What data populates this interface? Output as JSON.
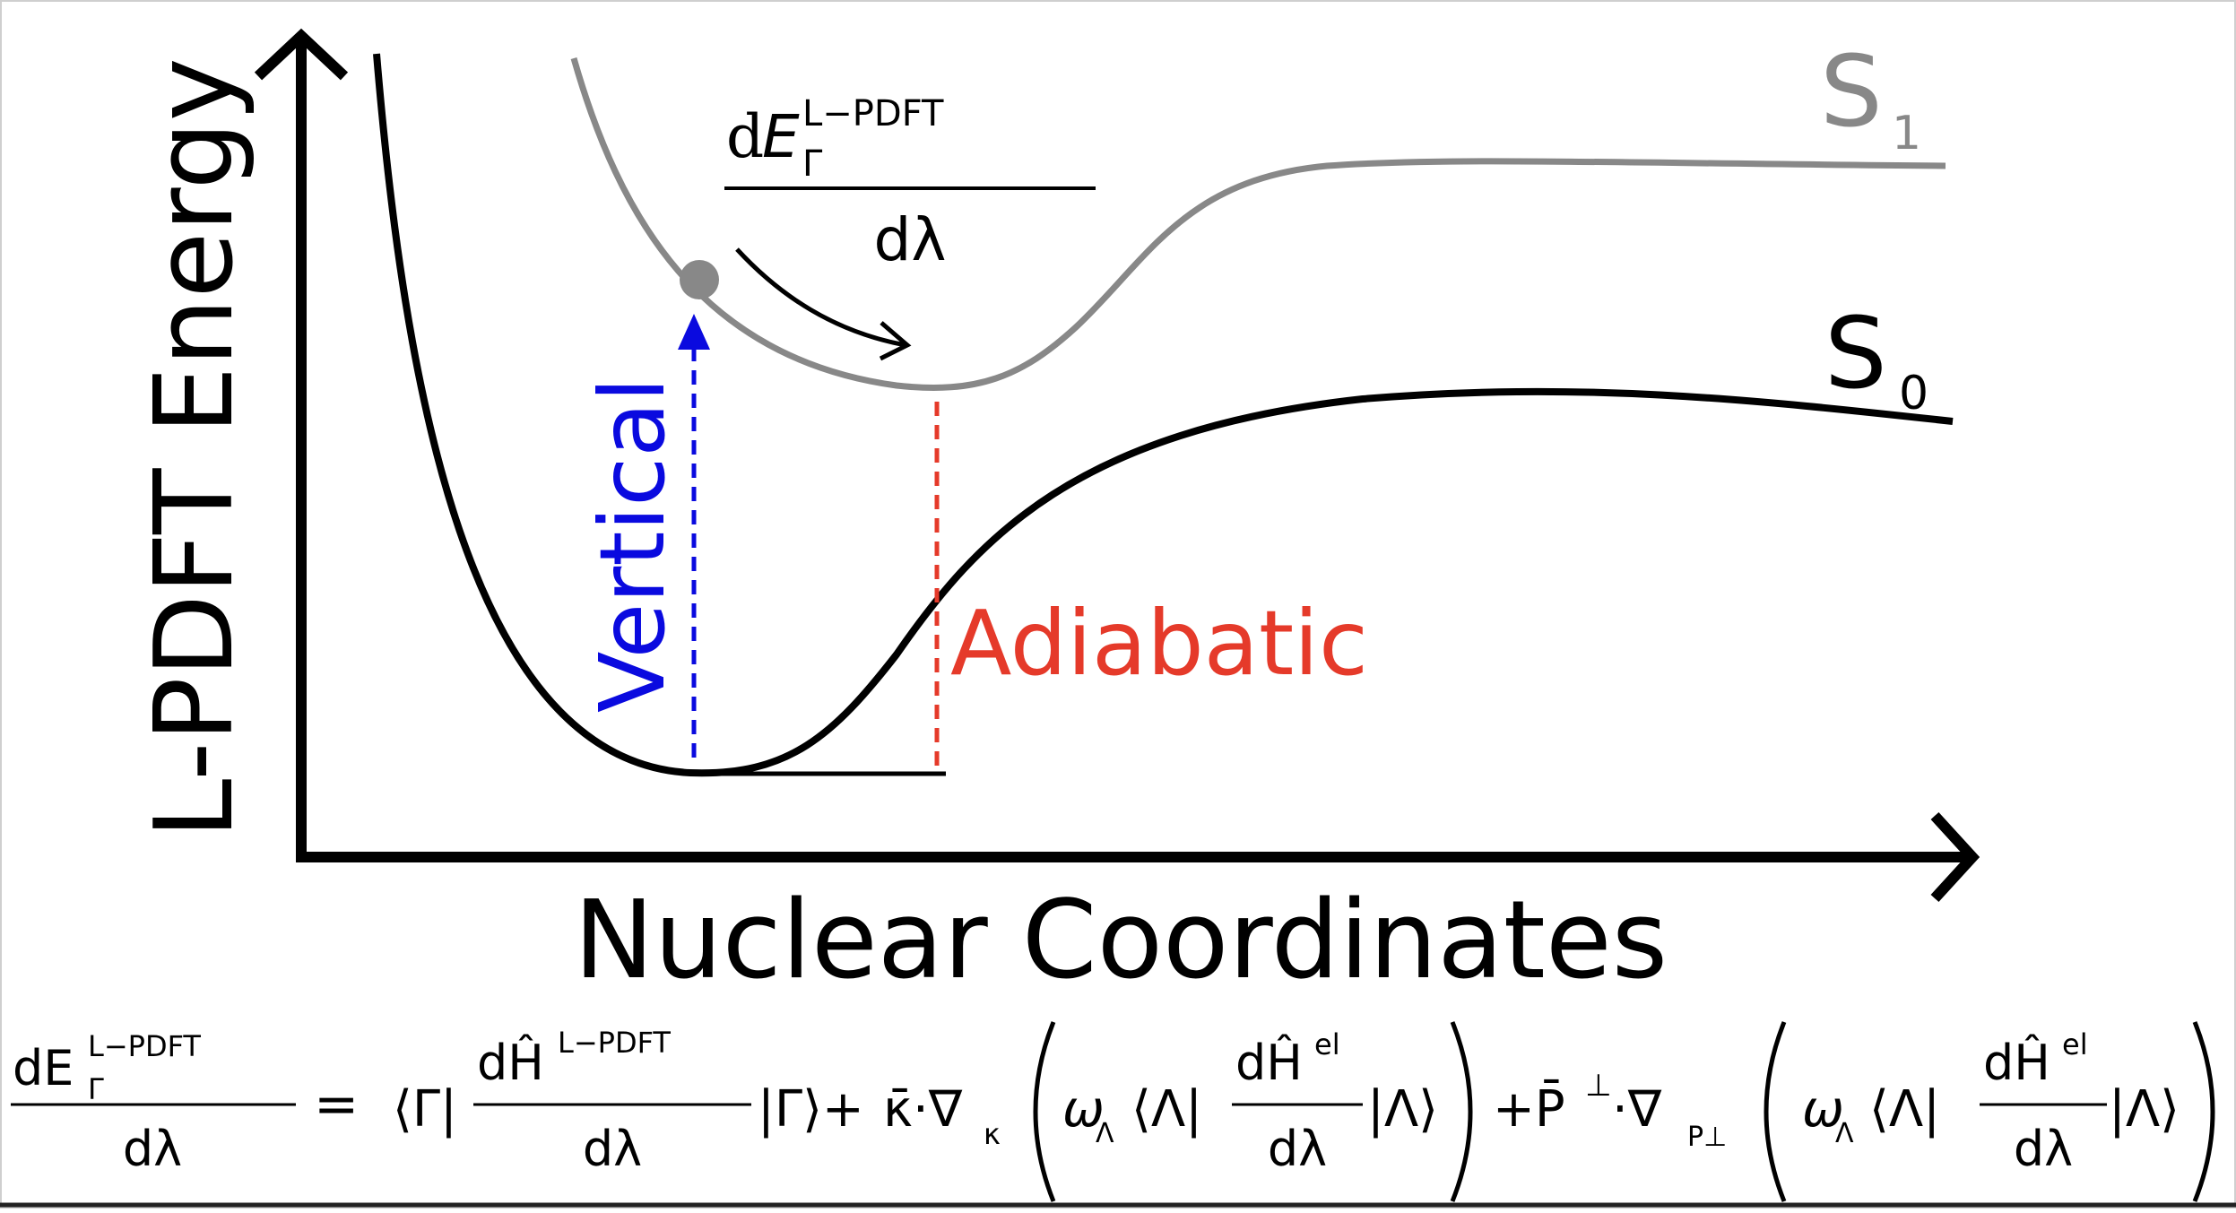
{
  "axes": {
    "y_label": "L-PDFT Energy",
    "x_label": "Nuclear Coordinates"
  },
  "curves": {
    "s1": {
      "label": "S",
      "subscript": "1",
      "color": "#888888"
    },
    "s0": {
      "label": "S",
      "subscript": "0",
      "color": "#000000"
    }
  },
  "transitions": {
    "vertical": {
      "label": "Vertical",
      "color": "#0a0adf"
    },
    "adiabatic": {
      "label": "Adiabatic",
      "color": "#e53a2a"
    }
  },
  "gradient_fraction": {
    "numerator_d": "d",
    "numerator_E": "E",
    "numerator_sup": "L−PDFT",
    "numerator_sub": "Γ",
    "denominator": "dλ"
  },
  "equation": {
    "lhs_num": "dE",
    "lhs_sup": "L−PDFT",
    "lhs_sub": "Γ",
    "lhs_den": "dλ",
    "equals": "=",
    "bra_gamma": "⟨Γ|",
    "term1_num": "dĤ",
    "term1_sup": "L−PDFT",
    "term1_den": "dλ",
    "ket_gamma": "|Γ⟩+",
    "kappa": "κ̄·∇",
    "kappa_sub": "κ",
    "omega1": "ω",
    "omega1_sub": "Λ",
    "bra_lambda1": "⟨Λ|",
    "term2_num": "dĤ",
    "term2_sup": "el",
    "term2_den": "dλ",
    "ket_lambda1": "|Λ⟩",
    "plus_p": "+P̄",
    "p_perp": "⊥",
    "nabla_p": "·∇",
    "nabla_p_sub": "P⊥",
    "omega2": "ω",
    "omega2_sub": "Λ",
    "bra_lambda2": "⟨Λ|",
    "term3_num": "dĤ",
    "term3_sup": "el",
    "term3_den": "dλ",
    "ket_lambda2": "|Λ⟩"
  }
}
